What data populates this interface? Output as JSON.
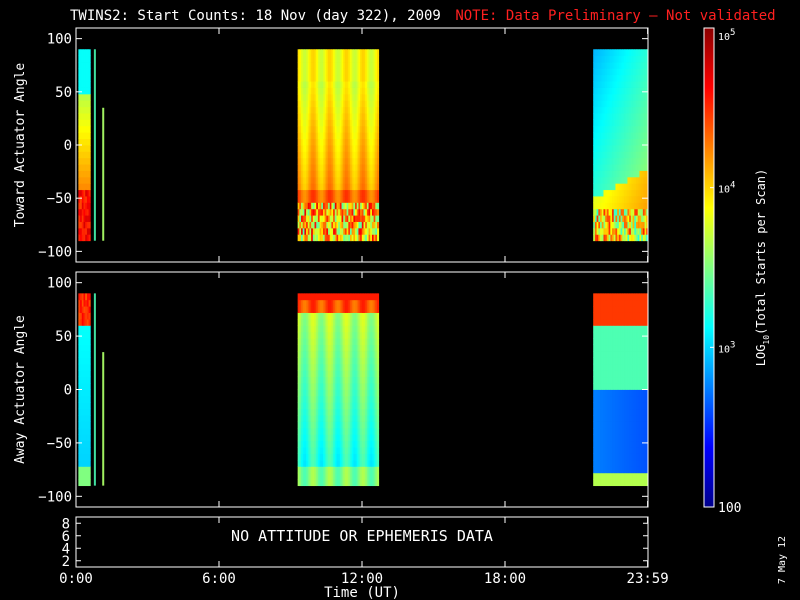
{
  "header": {
    "title": "TWINS2: Start Counts: 18 Nov (day 322), 2009",
    "note": "NOTE: Data Preliminary – Not validated",
    "note_color": "#ff2020"
  },
  "footer": {
    "date_stamp": "7 May 12"
  },
  "chart_data": [
    {
      "type": "heatmap",
      "panel": "toward",
      "ylabel": "Toward Actuator Angle",
      "ylim": [
        -110,
        110
      ],
      "yticks": [
        100,
        50,
        0,
        -50,
        -100
      ],
      "xlim": [
        0,
        24
      ],
      "data_blocks": [
        {
          "x_start": 0.1,
          "x_end": 0.6,
          "y_range": [
            -90,
            90
          ],
          "profile": "toward_pass1"
        },
        {
          "x_start": 9.3,
          "x_end": 12.7,
          "y_range": [
            -90,
            90
          ],
          "profile": "toward_pass2"
        },
        {
          "x_start": 21.7,
          "x_end": 24.0,
          "y_range": [
            -90,
            90
          ],
          "profile": "toward_pass3"
        }
      ],
      "spikes": [
        {
          "x": 0.75,
          "y_range": [
            -90,
            90
          ]
        },
        {
          "x": 1.1,
          "y_range": [
            -90,
            35
          ]
        }
      ]
    },
    {
      "type": "heatmap",
      "panel": "away",
      "ylabel": "Away Actuator Angle",
      "ylim": [
        -110,
        110
      ],
      "yticks": [
        100,
        50,
        0,
        -50,
        -100
      ],
      "xlim": [
        0,
        24
      ],
      "data_blocks": [
        {
          "x_start": 0.1,
          "x_end": 0.6,
          "y_range": [
            -90,
            90
          ],
          "profile": "away_pass1"
        },
        {
          "x_start": 9.3,
          "x_end": 12.7,
          "y_range": [
            -90,
            90
          ],
          "profile": "away_pass2"
        },
        {
          "x_start": 21.7,
          "x_end": 24.0,
          "y_range": [
            -90,
            90
          ],
          "profile": "away_pass3"
        }
      ],
      "spikes": [
        {
          "x": 0.75,
          "y_range": [
            -90,
            90
          ]
        },
        {
          "x": 1.1,
          "y_range": [
            -90,
            35
          ]
        }
      ]
    },
    {
      "type": "table",
      "panel": "ephemeris",
      "yticks": [
        8,
        6,
        4,
        2
      ],
      "message": "NO ATTITUDE OR EPHEMERIS DATA"
    }
  ],
  "xaxis": {
    "ticks": [
      {
        "t": 0,
        "label": "0:00"
      },
      {
        "t": 6,
        "label": "6:00"
      },
      {
        "t": 12,
        "label": "12:00"
      },
      {
        "t": 18,
        "label": "18:00"
      },
      {
        "t": 23.983,
        "label": "23:59"
      }
    ],
    "label": "Time (UT)"
  },
  "colorbar": {
    "scale": "log",
    "range": [
      100,
      100000
    ],
    "ticks": [
      {
        "value": 100000,
        "base": "10",
        "exp": "5"
      },
      {
        "value": 10000,
        "base": "10",
        "exp": "4"
      },
      {
        "value": 1000,
        "base": "10",
        "exp": "3"
      },
      {
        "value": 100,
        "label": "100"
      }
    ],
    "label_pre": "LOG",
    "label_sub": "10",
    "label_post": "(Total Starts per Scan)",
    "colormap": [
      "#00008b",
      "#0000ff",
      "#0080ff",
      "#00ffff",
      "#80ff80",
      "#ffff00",
      "#ff8000",
      "#ff0000",
      "#8b0000"
    ]
  }
}
